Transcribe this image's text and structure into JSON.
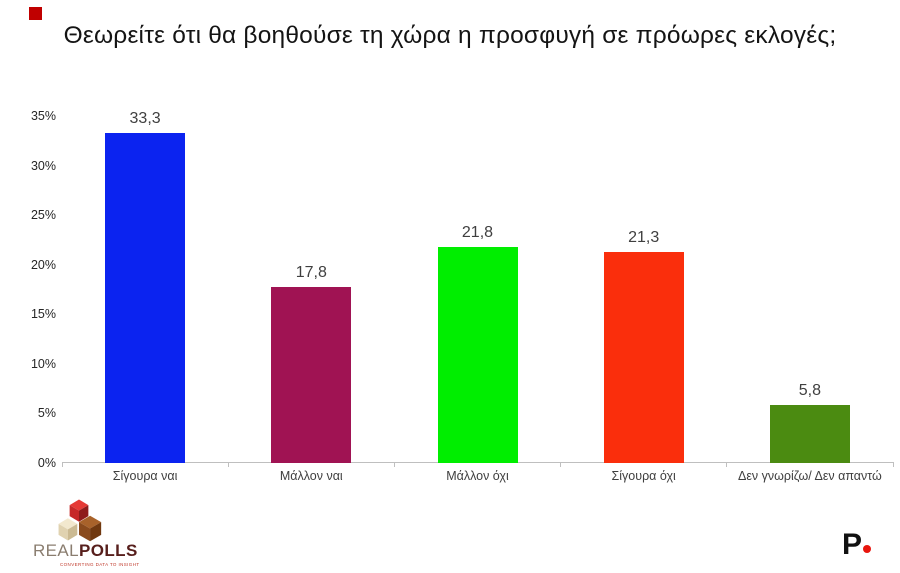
{
  "slide": {
    "background": "#FFFFFF",
    "accent_square_color": "#C00000"
  },
  "title": "Θεωρείτε ότι θα βοηθούσε τη χώρα η προσφυγή σε πρόωρες εκλογές;",
  "chart_data": {
    "type": "bar",
    "title": "Θεωρείτε ότι θα βοηθούσε τη χώρα η προσφυγή σε πρόωρες εκλογές;",
    "categories": [
      "Σίγουρα ναι",
      "Μάλλον ναι",
      "Μάλλον όχι",
      "Σίγουρα όχι",
      "Δεν γνωρίζω/ Δεν απαντώ"
    ],
    "values": [
      33.3,
      17.8,
      21.8,
      21.3,
      5.8
    ],
    "value_labels": [
      "33,3",
      "17,8",
      "21,8",
      "21,3",
      "5,8"
    ],
    "bar_colors": [
      "#0B23F0",
      "#A01353",
      "#00EE00",
      "#FA2E0C",
      "#4B8B11"
    ],
    "xlabel": "",
    "ylabel": "",
    "ylim": [
      0,
      35
    ],
    "ytick_step": 5,
    "ytick_labels": [
      "0%",
      "5%",
      "10%",
      "15%",
      "20%",
      "25%",
      "30%",
      "35%"
    ],
    "grid": false,
    "legend": "none"
  },
  "axis": {
    "line_color": "#BFBFBF",
    "category_label_color": "#3F3F3F",
    "ytick_label_color": "#262626"
  },
  "footer": {
    "brand": {
      "name_part1": "REAL",
      "name_part2": "POLLS",
      "tagline": "CONVERTING DATA TO INSIGHT",
      "colors": {
        "name_part1": "#8A7D6F",
        "name_part2": "#571F1C",
        "tagline": "#C0392B",
        "cube_red": "#E53935",
        "cube_cream": "#F2E8CE",
        "cube_brown": "#A8622A"
      }
    },
    "publisher_logo": {
      "letter": "P",
      "letter_color": "#111111",
      "dot_color": "#E8150D"
    }
  }
}
